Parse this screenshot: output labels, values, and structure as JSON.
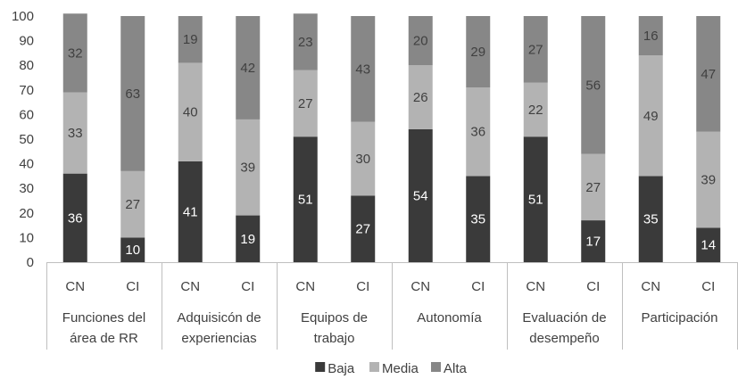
{
  "chart_data": {
    "type": "bar",
    "stacked": true,
    "stack_mode": "percent",
    "ylim": [
      0,
      100
    ],
    "yticks": [
      0,
      10,
      20,
      30,
      40,
      50,
      60,
      70,
      80,
      90,
      100
    ],
    "grid": false,
    "legend_position": "bottom",
    "groups": [
      {
        "label": [
          "Funciones del",
          "área de RR"
        ],
        "bars": [
          "CN",
          "CI"
        ]
      },
      {
        "label": [
          "Adquisicón de",
          "experiencias"
        ],
        "bars": [
          "CN",
          "CI"
        ]
      },
      {
        "label": [
          "Equipos de",
          "trabajo"
        ],
        "bars": [
          "CN",
          "CI"
        ]
      },
      {
        "label": [
          "Autonomía"
        ],
        "bars": [
          "CN",
          "CI"
        ]
      },
      {
        "label": [
          "Evaluación de",
          "desempeño"
        ],
        "bars": [
          "CN",
          "CI"
        ]
      },
      {
        "label": [
          "Participación"
        ],
        "bars": [
          "CN",
          "CI"
        ]
      }
    ],
    "categories": [
      "CN",
      "CI",
      "CN",
      "CI",
      "CN",
      "CI",
      "CN",
      "CI",
      "CN",
      "CI",
      "CN",
      "CI"
    ],
    "series": [
      {
        "name": "Baja",
        "color": "#3a3a3a",
        "label_color": "#ffffff",
        "values": [
          36,
          10,
          41,
          19,
          51,
          27,
          54,
          35,
          51,
          17,
          35,
          14
        ]
      },
      {
        "name": "Media",
        "color": "#b3b3b3",
        "label_color": "#404040",
        "values": [
          33,
          27,
          40,
          39,
          27,
          30,
          26,
          36,
          22,
          27,
          49,
          39
        ]
      },
      {
        "name": "Alta",
        "color": "#878787",
        "label_color": "#404040",
        "values": [
          32,
          63,
          19,
          42,
          23,
          43,
          20,
          29,
          27,
          56,
          16,
          47
        ]
      }
    ]
  }
}
